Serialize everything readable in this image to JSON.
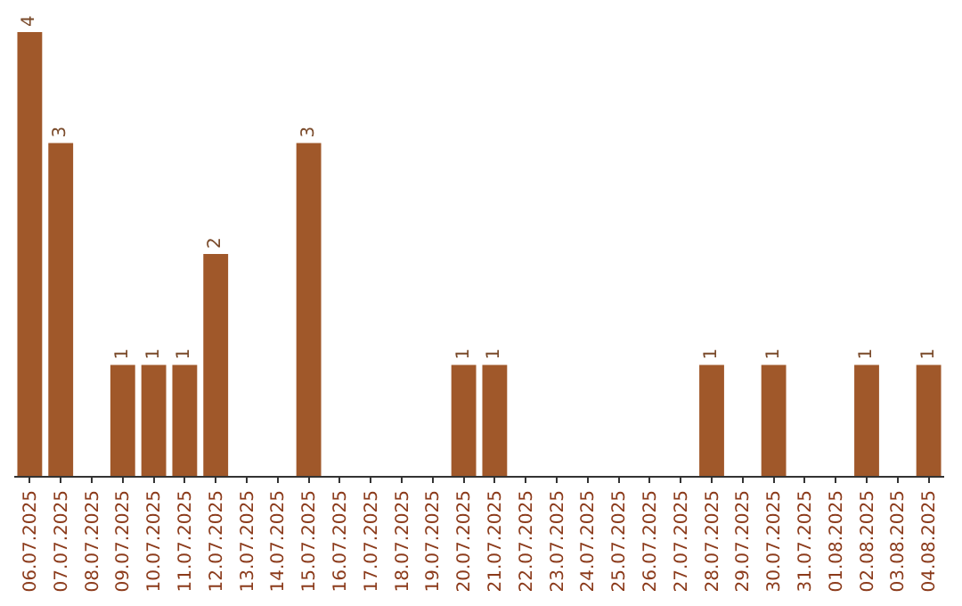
{
  "chart_data": {
    "type": "bar",
    "categories": [
      "06.07.2025",
      "07.07.2025",
      "08.07.2025",
      "09.07.2025",
      "10.07.2025",
      "11.07.2025",
      "12.07.2025",
      "13.07.2025",
      "14.07.2025",
      "15.07.2025",
      "16.07.2025",
      "17.07.2025",
      "18.07.2025",
      "19.07.2025",
      "20.07.2025",
      "21.07.2025",
      "22.07.2025",
      "23.07.2025",
      "24.07.2025",
      "25.07.2025",
      "26.07.2025",
      "27.07.2025",
      "28.07.2025",
      "29.07.2025",
      "30.07.2025",
      "31.07.2025",
      "01.08.2025",
      "02.08.2025",
      "03.08.2025",
      "04.08.2025"
    ],
    "values": [
      4,
      3,
      0,
      1,
      1,
      1,
      2,
      0,
      0,
      3,
      0,
      0,
      0,
      0,
      1,
      1,
      0,
      0,
      0,
      0,
      0,
      0,
      1,
      0,
      1,
      0,
      0,
      1,
      0,
      1
    ],
    "value_labels": [
      "4",
      "3",
      null,
      "1",
      "1",
      "1",
      "2",
      null,
      null,
      "3",
      null,
      null,
      null,
      null,
      "1",
      "1",
      null,
      null,
      null,
      null,
      null,
      null,
      "1",
      null,
      "1",
      null,
      null,
      "1",
      null,
      "1"
    ],
    "color": "#a0582a",
    "legend": false
  }
}
